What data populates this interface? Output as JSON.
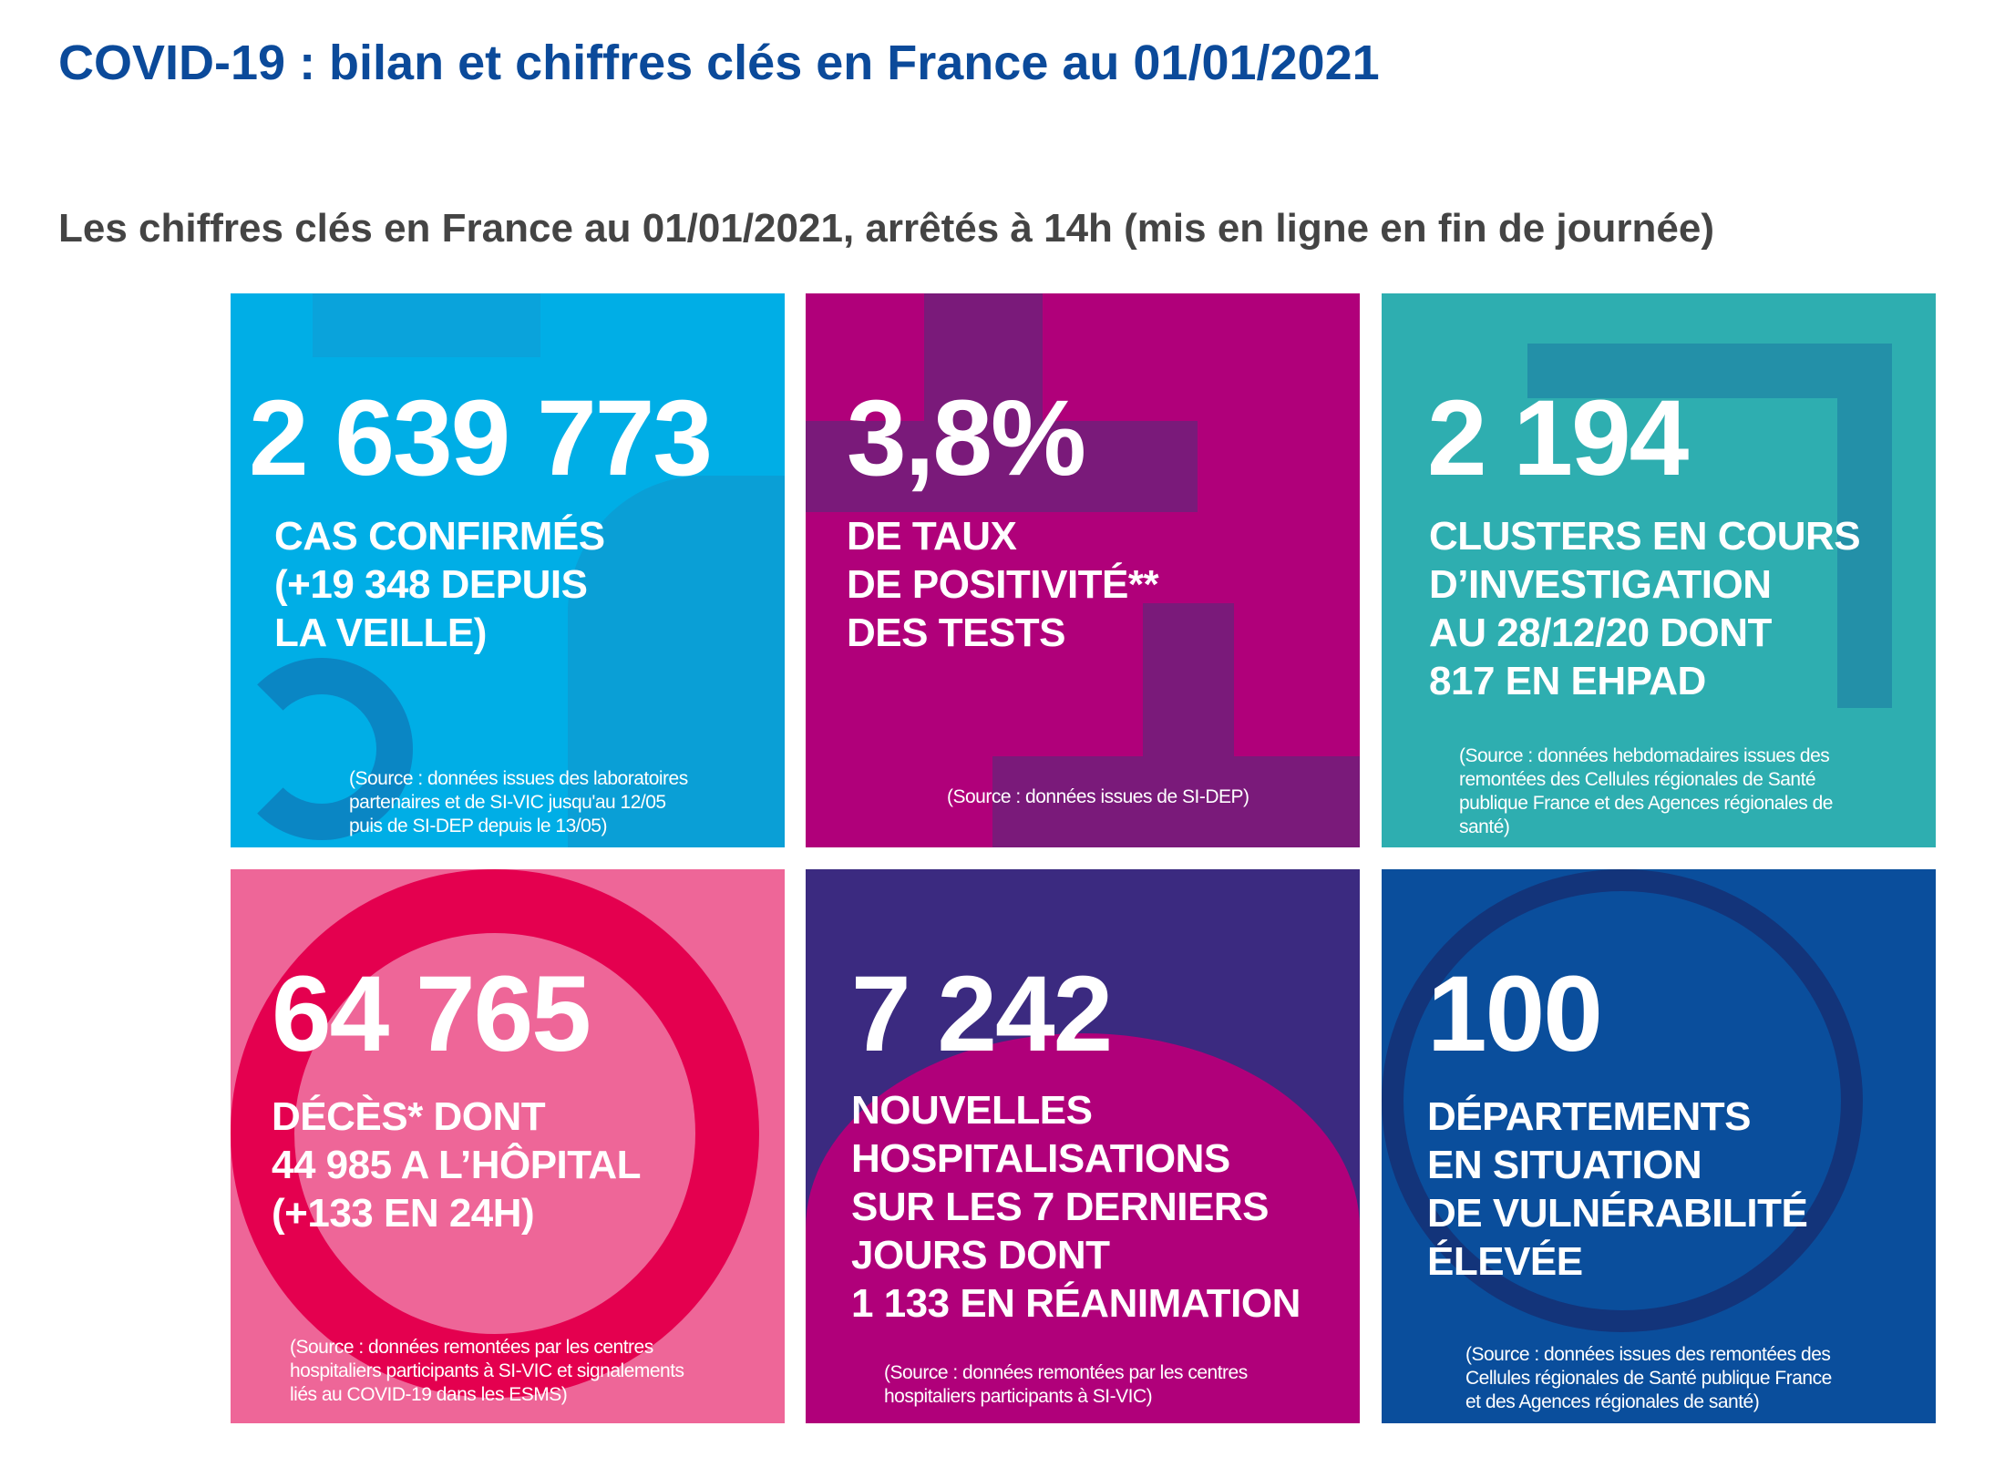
{
  "title": "COVID-19 : bilan et chiffres clés en France au 01/01/2021",
  "subtitle": "Les chiffres clés en France au 01/01/2021, arrêtés à 14h (mis en ligne en fin de journée)",
  "tiles": [
    {
      "number": "2 639 773",
      "label": "CAS CONFIRMÉS\n(+19 348 DEPUIS\nLA VEILLE)",
      "source": "(Source : données issues des laboratoires\npartenaires et de SI-VIC jusqu'au 12/05\npuis de SI-DEP depuis le 13/05)",
      "color": "#00aee6"
    },
    {
      "number": "3,8%",
      "label": "DE TAUX\nDE POSITIVITÉ**\nDES TESTS",
      "source": "(Source : données issues de SI-DEP)",
      "color": "#b0007a"
    },
    {
      "number": "2 194",
      "label": "CLUSTERS EN COURS\nD’INVESTIGATION\nAU 28/12/20 DONT\n817 EN EHPAD",
      "source": "(Source : données hebdomadaires issues des\nremontées des Cellules régionales de Santé\npublique France et des Agences régionales de\nsanté)",
      "color": "#2eaeb0"
    },
    {
      "number": "64 765",
      "label": "DÉCÈS* DONT\n44 985 A L’HÔPITAL\n(+133 EN 24H)",
      "source": "(Source : données remontées par les centres\nhospitaliers participants à SI-VIC et signalements\nliés au COVID-19 dans les ESMS)",
      "color": "#ee6698"
    },
    {
      "number": "7 242",
      "label": "NOUVELLES\nHOSPITALISATIONS\nSUR LES 7 DERNIERS\nJOURS DONT\n1 133 EN RÉANIMATION",
      "source": "(Source : données remontées par les centres\nhospitaliers participants à SI-VIC)",
      "color": "#3b2a80"
    },
    {
      "number": "100",
      "label": "DÉPARTEMENTS\nEN SITUATION\nDE VULNÉRABILITÉ\nÉLEVÉE",
      "source": "(Source : données issues des remontées des\nCellules régionales de Santé publique France\net des Agences régionales de santé)",
      "color": "#0a4e9c"
    }
  ]
}
